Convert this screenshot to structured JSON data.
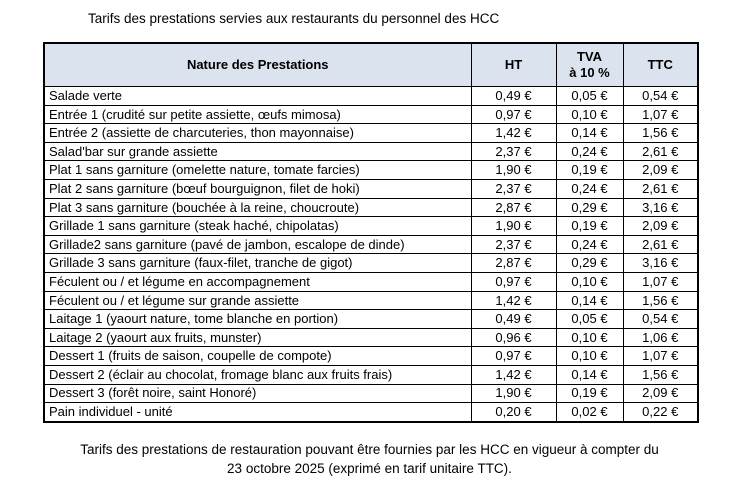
{
  "title": "Tarifs des prestations servies aux restaurants du personnel des HCC",
  "colors": {
    "header_fill": "#dbe3ee",
    "border": "#000000",
    "text": "#000000",
    "background": "#ffffff"
  },
  "table": {
    "headers": {
      "nature": "Nature des Prestations",
      "ht": "HT",
      "tva_line1": "TVA",
      "tva_line2": "à 10 %",
      "ttc": "TTC"
    },
    "rows": [
      {
        "label": "Salade verte",
        "ht": "0,49 €",
        "tva": "0,05 €",
        "ttc": "0,54 €"
      },
      {
        "label": "Entrée 1 (crudité sur petite assiette, œufs mimosa)",
        "ht": "0,97 €",
        "tva": "0,10 €",
        "ttc": "1,07 €"
      },
      {
        "label": "Entrée 2 (assiette de charcuteries, thon mayonnaise)",
        "ht": "1,42 €",
        "tva": "0,14 €",
        "ttc": "1,56 €"
      },
      {
        "label": "Salad'bar sur grande assiette",
        "ht": "2,37 €",
        "tva": "0,24 €",
        "ttc": "2,61 €"
      },
      {
        "label": "Plat 1 sans garniture (omelette nature, tomate farcies)",
        "ht": "1,90 €",
        "tva": "0,19 €",
        "ttc": "2,09 €"
      },
      {
        "label": "Plat 2 sans garniture (bœuf bourguignon, filet de hoki)",
        "ht": "2,37 €",
        "tva": "0,24 €",
        "ttc": "2,61 €"
      },
      {
        "label": "Plat 3 sans garniture (bouchée à la reine, choucroute)",
        "ht": "2,87 €",
        "tva": "0,29 €",
        "ttc": "3,16 €"
      },
      {
        "label": "Grillade 1 sans garniture (steak haché, chipolatas)",
        "ht": "1,90 €",
        "tva": "0,19 €",
        "ttc": "2,09 €"
      },
      {
        "label": "Grillade2 sans garniture (pavé de jambon, escalope de dinde)",
        "ht": "2,37 €",
        "tva": "0,24 €",
        "ttc": "2,61 €"
      },
      {
        "label": "Grillade 3 sans garniture (faux-filet, tranche de gigot)",
        "ht": "2,87 €",
        "tva": "0,29 €",
        "ttc": "3,16 €"
      },
      {
        "label": "Féculent ou / et légume en accompagnement",
        "ht": "0,97 €",
        "tva": "0,10 €",
        "ttc": "1,07 €"
      },
      {
        "label": "Féculent ou / et légume sur grande assiette",
        "ht": "1,42 €",
        "tva": "0,14 €",
        "ttc": "1,56 €"
      },
      {
        "label": "Laitage 1 (yaourt nature, tome blanche en portion)",
        "ht": "0,49 €",
        "tva": "0,05 €",
        "ttc": "0,54 €"
      },
      {
        "label": "Laitage 2 (yaourt aux fruits, munster)",
        "ht": "0,96 €",
        "tva": "0,10 €",
        "ttc": "1,06 €"
      },
      {
        "label": "Dessert 1 (fruits de saison, coupelle de compote)",
        "ht": "0,97 €",
        "tva": "0,10 €",
        "ttc": "1,07 €"
      },
      {
        "label": "Dessert 2 (éclair au chocolat, fromage blanc aux fruits frais)",
        "ht": "1,42 €",
        "tva": "0,14 €",
        "ttc": "1,56 €"
      },
      {
        "label": "Dessert 3 (forêt noire, saint Honoré)",
        "ht": "1,90 €",
        "tva": "0,19 €",
        "ttc": "2,09 €"
      },
      {
        "label": "Pain individuel - unité",
        "ht": "0,20 €",
        "tva": "0,02 €",
        "ttc": "0,22 €"
      }
    ]
  },
  "footer": {
    "line1": "Tarifs des prestations de restauration pouvant être fournies par les HCC en vigueur à compter du",
    "line2": "23 octobre 2025 (exprimé en tarif unitaire TTC)."
  }
}
